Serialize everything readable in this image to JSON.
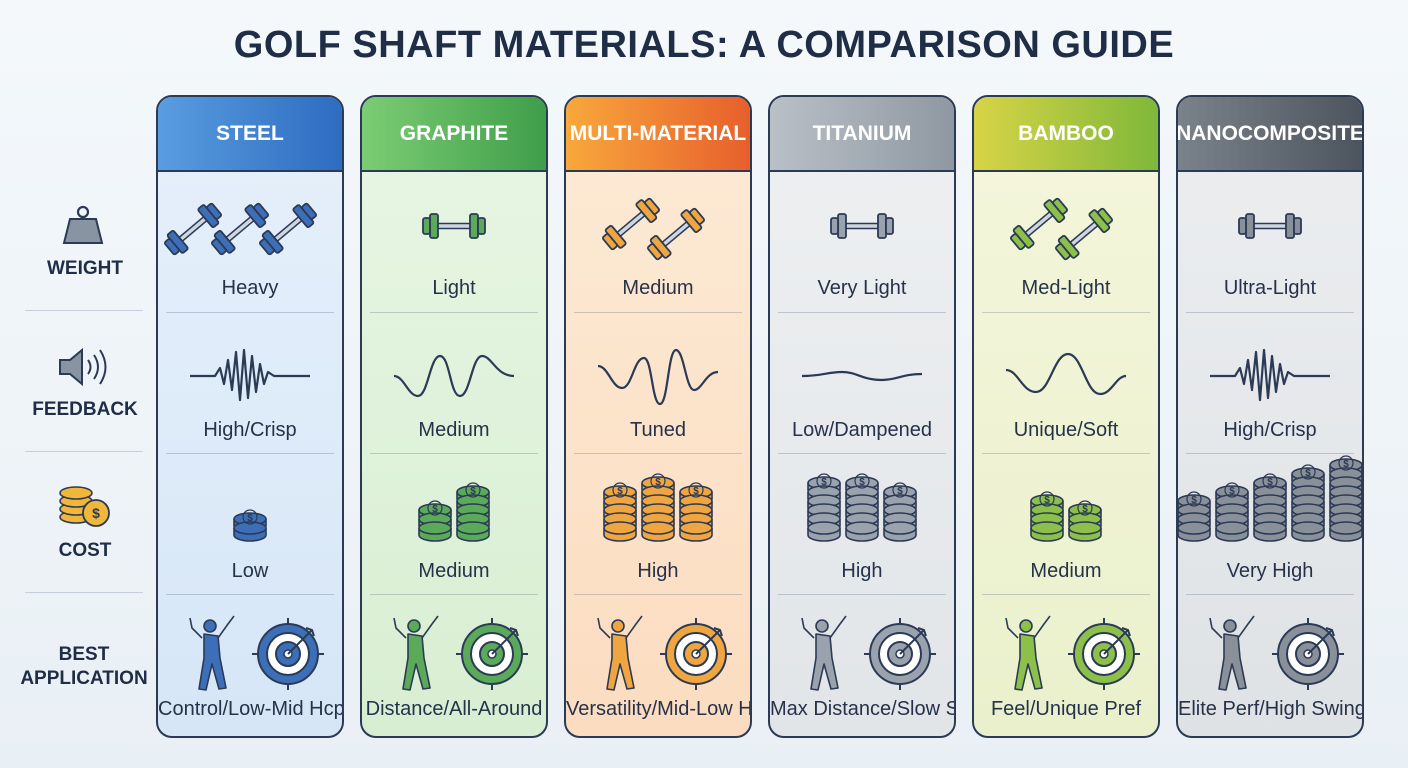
{
  "title": "GOLF SHAFT MATERIALS: A COMPARISON GUIDE",
  "row_labels": [
    "WEIGHT",
    "FEEDBACK",
    "COST",
    "BEST APPLICATION"
  ],
  "columns": [
    {
      "name": "STEEL",
      "weight": "Heavy",
      "feedback": "High/Crisp",
      "cost": "Low",
      "application": "Control/Low-Mid Hcp"
    },
    {
      "name": "GRAPHITE",
      "weight": "Light",
      "feedback": "Medium",
      "cost": "Medium",
      "application": "Distance/All-Around"
    },
    {
      "name": "MULTI-MATERIAL",
      "weight": "Medium",
      "feedback": "Tuned",
      "cost": "High",
      "application": "Versatility/Mid-Low Hcp"
    },
    {
      "name": "TITANIUM",
      "weight": "Very Light",
      "feedback": "Low/Dampened",
      "cost": "High",
      "application": "Max Distance/Slow Swing"
    },
    {
      "name": "BAMBOO",
      "weight": "Med-Light",
      "feedback": "Unique/Soft",
      "cost": "Medium",
      "application": "Feel/Unique Pref"
    },
    {
      "name": "NANOCOMPOSITE",
      "weight": "Ultra-Light",
      "feedback": "High/Crisp",
      "cost": "Very High",
      "application": "Elite Perf/High Swing"
    }
  ]
}
